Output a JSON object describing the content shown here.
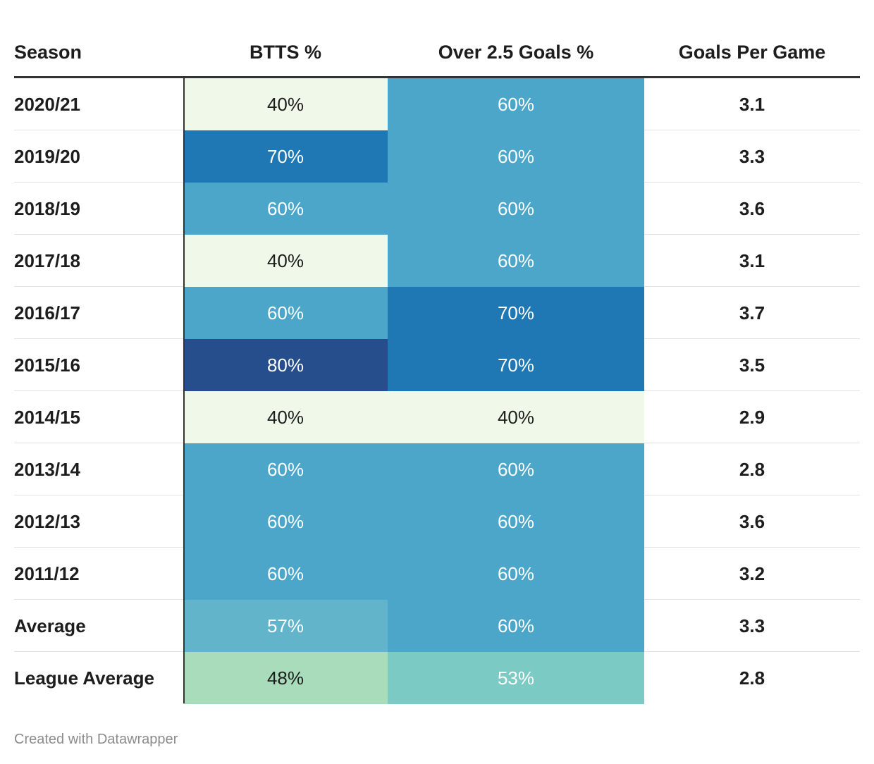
{
  "chart_data": {
    "type": "table",
    "columns": [
      "Season",
      "BTTS %",
      "Over 2.5 Goals %",
      "Goals Per Game"
    ],
    "rows": [
      {
        "season": "2020/21",
        "btts": "40%",
        "over25": "60%",
        "gpg": "3.1"
      },
      {
        "season": "2019/20",
        "btts": "70%",
        "over25": "60%",
        "gpg": "3.3"
      },
      {
        "season": "2018/19",
        "btts": "60%",
        "over25": "60%",
        "gpg": "3.6"
      },
      {
        "season": "2017/18",
        "btts": "40%",
        "over25": "60%",
        "gpg": "3.1"
      },
      {
        "season": "2016/17",
        "btts": "60%",
        "over25": "70%",
        "gpg": "3.7"
      },
      {
        "season": "2015/16",
        "btts": "80%",
        "over25": "70%",
        "gpg": "3.5"
      },
      {
        "season": "2014/15",
        "btts": "40%",
        "over25": "40%",
        "gpg": "2.9"
      },
      {
        "season": "2013/14",
        "btts": "60%",
        "over25": "60%",
        "gpg": "2.8"
      },
      {
        "season": "2012/13",
        "btts": "60%",
        "over25": "60%",
        "gpg": "3.6"
      },
      {
        "season": "2011/12",
        "btts": "60%",
        "over25": "60%",
        "gpg": "3.2"
      },
      {
        "season": "Average",
        "btts": "57%",
        "over25": "60%",
        "gpg": "3.3"
      },
      {
        "season": "League Average",
        "btts": "48%",
        "over25": "53%",
        "gpg": "2.8"
      }
    ],
    "heat_colors": {
      "40": "#eff8e9",
      "48": "#a9dcbb",
      "53": "#7bcac4",
      "57": "#61b4c9",
      "60": "#4ba6ca",
      "70": "#1f78b4",
      "80": "#264d8c"
    }
  },
  "footer": "Created with Datawrapper"
}
